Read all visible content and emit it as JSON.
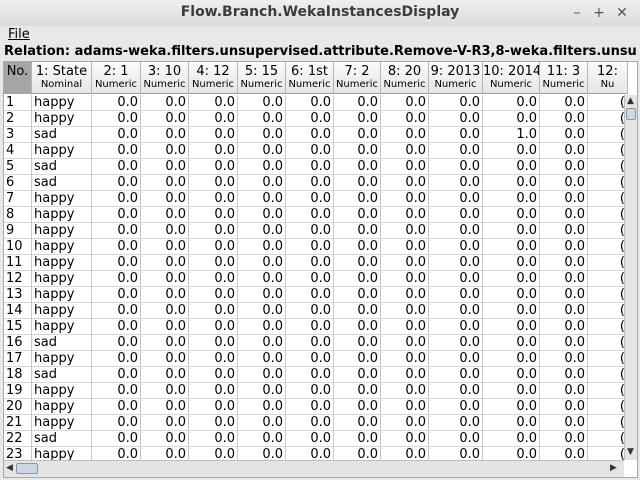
{
  "window": {
    "title": "Flow.Branch.WekaInstancesDisplay"
  },
  "menu": {
    "file": "File"
  },
  "relation": "Relation: adams-weka.filters.unsupervised.attribute.Remove-V-R3,8-weka.filters.unsu...",
  "columns": [
    {
      "name": "No.",
      "type": ""
    },
    {
      "name": "1: State",
      "type": "Nominal"
    },
    {
      "name": "2: 1",
      "type": "Numeric"
    },
    {
      "name": "3: 10",
      "type": "Numeric"
    },
    {
      "name": "4: 12",
      "type": "Numeric"
    },
    {
      "name": "5: 15",
      "type": "Numeric"
    },
    {
      "name": "6: 1st",
      "type": "Numeric"
    },
    {
      "name": "7: 2",
      "type": "Numeric"
    },
    {
      "name": "8: 20",
      "type": "Numeric"
    },
    {
      "name": "9: 2013",
      "type": "Numeric"
    },
    {
      "name": "10: 2014",
      "type": "Numeric"
    },
    {
      "name": "11: 3",
      "type": "Numeric"
    },
    {
      "name": "12:",
      "type": "Nu"
    }
  ],
  "rows": [
    [
      "1",
      "happy",
      "0.0",
      "0.0",
      "0.0",
      "0.0",
      "0.0",
      "0.0",
      "0.0",
      "0.0",
      "0.0",
      "0.0",
      "("
    ],
    [
      "2",
      "happy",
      "0.0",
      "0.0",
      "0.0",
      "0.0",
      "0.0",
      "0.0",
      "0.0",
      "0.0",
      "0.0",
      "0.0",
      "("
    ],
    [
      "3",
      "sad",
      "0.0",
      "0.0",
      "0.0",
      "0.0",
      "0.0",
      "0.0",
      "0.0",
      "0.0",
      "1.0",
      "0.0",
      "("
    ],
    [
      "4",
      "happy",
      "0.0",
      "0.0",
      "0.0",
      "0.0",
      "0.0",
      "0.0",
      "0.0",
      "0.0",
      "0.0",
      "0.0",
      "("
    ],
    [
      "5",
      "sad",
      "0.0",
      "0.0",
      "0.0",
      "0.0",
      "0.0",
      "0.0",
      "0.0",
      "0.0",
      "0.0",
      "0.0",
      "("
    ],
    [
      "6",
      "sad",
      "0.0",
      "0.0",
      "0.0",
      "0.0",
      "0.0",
      "0.0",
      "0.0",
      "0.0",
      "0.0",
      "0.0",
      "("
    ],
    [
      "7",
      "happy",
      "0.0",
      "0.0",
      "0.0",
      "0.0",
      "0.0",
      "0.0",
      "0.0",
      "0.0",
      "0.0",
      "0.0",
      "("
    ],
    [
      "8",
      "happy",
      "0.0",
      "0.0",
      "0.0",
      "0.0",
      "0.0",
      "0.0",
      "0.0",
      "0.0",
      "0.0",
      "0.0",
      "("
    ],
    [
      "9",
      "happy",
      "0.0",
      "0.0",
      "0.0",
      "0.0",
      "0.0",
      "0.0",
      "0.0",
      "0.0",
      "0.0",
      "0.0",
      "("
    ],
    [
      "10",
      "happy",
      "0.0",
      "0.0",
      "0.0",
      "0.0",
      "0.0",
      "0.0",
      "0.0",
      "0.0",
      "0.0",
      "0.0",
      "("
    ],
    [
      "11",
      "happy",
      "0.0",
      "0.0",
      "0.0",
      "0.0",
      "0.0",
      "0.0",
      "0.0",
      "0.0",
      "0.0",
      "0.0",
      "("
    ],
    [
      "12",
      "happy",
      "0.0",
      "0.0",
      "0.0",
      "0.0",
      "0.0",
      "0.0",
      "0.0",
      "0.0",
      "0.0",
      "0.0",
      "("
    ],
    [
      "13",
      "happy",
      "0.0",
      "0.0",
      "0.0",
      "0.0",
      "0.0",
      "0.0",
      "0.0",
      "0.0",
      "0.0",
      "0.0",
      "("
    ],
    [
      "14",
      "happy",
      "0.0",
      "0.0",
      "0.0",
      "0.0",
      "0.0",
      "0.0",
      "0.0",
      "0.0",
      "0.0",
      "0.0",
      "("
    ],
    [
      "15",
      "happy",
      "0.0",
      "0.0",
      "0.0",
      "0.0",
      "0.0",
      "0.0",
      "0.0",
      "0.0",
      "0.0",
      "0.0",
      "("
    ],
    [
      "16",
      "sad",
      "0.0",
      "0.0",
      "0.0",
      "0.0",
      "0.0",
      "0.0",
      "0.0",
      "0.0",
      "0.0",
      "0.0",
      "("
    ],
    [
      "17",
      "happy",
      "0.0",
      "0.0",
      "0.0",
      "0.0",
      "0.0",
      "0.0",
      "0.0",
      "0.0",
      "0.0",
      "0.0",
      "("
    ],
    [
      "18",
      "sad",
      "0.0",
      "0.0",
      "0.0",
      "0.0",
      "0.0",
      "0.0",
      "0.0",
      "0.0",
      "0.0",
      "0.0",
      "("
    ],
    [
      "19",
      "happy",
      "0.0",
      "0.0",
      "0.0",
      "0.0",
      "0.0",
      "0.0",
      "0.0",
      "0.0",
      "0.0",
      "0.0",
      "("
    ],
    [
      "20",
      "happy",
      "0.0",
      "0.0",
      "0.0",
      "0.0",
      "0.0",
      "0.0",
      "0.0",
      "0.0",
      "0.0",
      "0.0",
      "("
    ],
    [
      "21",
      "happy",
      "0.0",
      "0.0",
      "0.0",
      "0.0",
      "0.0",
      "0.0",
      "0.0",
      "0.0",
      "0.0",
      "0.0",
      "("
    ],
    [
      "22",
      "sad",
      "0.0",
      "0.0",
      "0.0",
      "0.0",
      "0.0",
      "0.0",
      "0.0",
      "0.0",
      "0.0",
      "0.0",
      "("
    ],
    [
      "23",
      "happy",
      "0.0",
      "0.0",
      "0.0",
      "0.0",
      "0.0",
      "0.0",
      "0.0",
      "0.0",
      "0.0",
      "0.0",
      "("
    ]
  ],
  "icons": {
    "minimize": "minimize-icon",
    "maximize": "maximize-icon",
    "close": "close-icon"
  }
}
